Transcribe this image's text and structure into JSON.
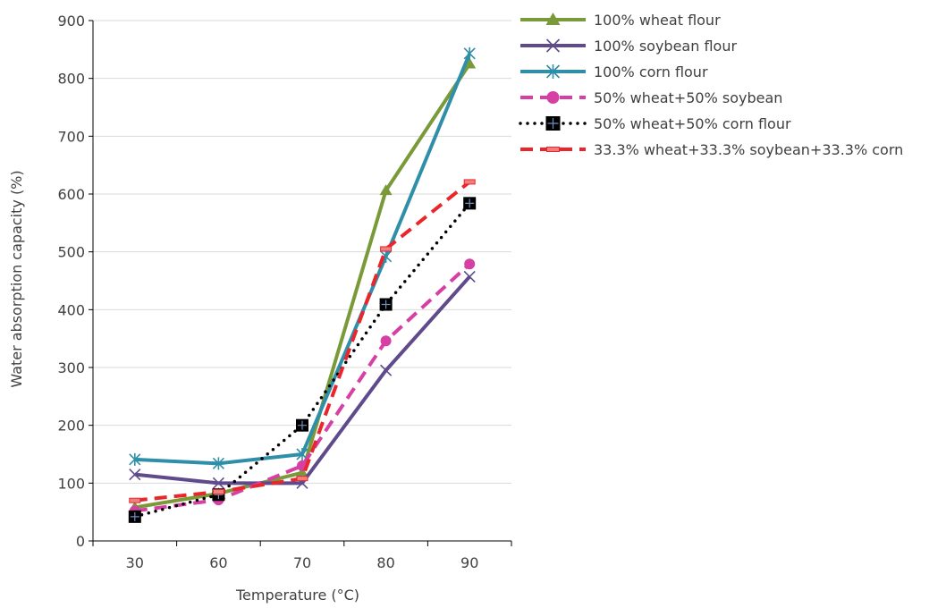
{
  "chart_data": {
    "type": "line",
    "categories": [
      "30",
      "60",
      "70",
      "80",
      "90"
    ],
    "xlabel": "Temperature (°C)",
    "ylabel": "Water  absorption capacity (%)",
    "ylim": [
      0,
      900
    ],
    "yticks": [
      0,
      100,
      200,
      300,
      400,
      500,
      600,
      700,
      800,
      900
    ],
    "grid": true,
    "legend_position": "top-right",
    "series": [
      {
        "name": "100% wheat flour",
        "values": [
          58,
          82,
          118,
          606,
          825
        ],
        "color": "#7A9A3A",
        "style": "solid",
        "marker": "triangle"
      },
      {
        "name": "100% soybean flour",
        "values": [
          115,
          100,
          100,
          295,
          457
        ],
        "color": "#5F4B8B",
        "style": "solid",
        "marker": "x"
      },
      {
        "name": "100% corn flour",
        "values": [
          141,
          134,
          150,
          492,
          843
        ],
        "color": "#2F8FA8",
        "style": "solid",
        "marker": "star"
      },
      {
        "name": "50% wheat+50% soybean",
        "values": [
          52,
          71,
          130,
          346,
          479
        ],
        "color": "#D63FA3",
        "style": "dash",
        "marker": "circle"
      },
      {
        "name": "50% wheat+50% corn flour",
        "values": [
          42,
          80,
          200,
          409,
          584
        ],
        "color": "#000000",
        "style": "dot",
        "marker": "square"
      },
      {
        "name": "33.3% wheat+33.3% soybean+33.3% corn",
        "values": [
          70,
          85,
          108,
          505,
          621
        ],
        "color": "#E8262B",
        "style": "dash",
        "marker": "dash"
      }
    ]
  }
}
